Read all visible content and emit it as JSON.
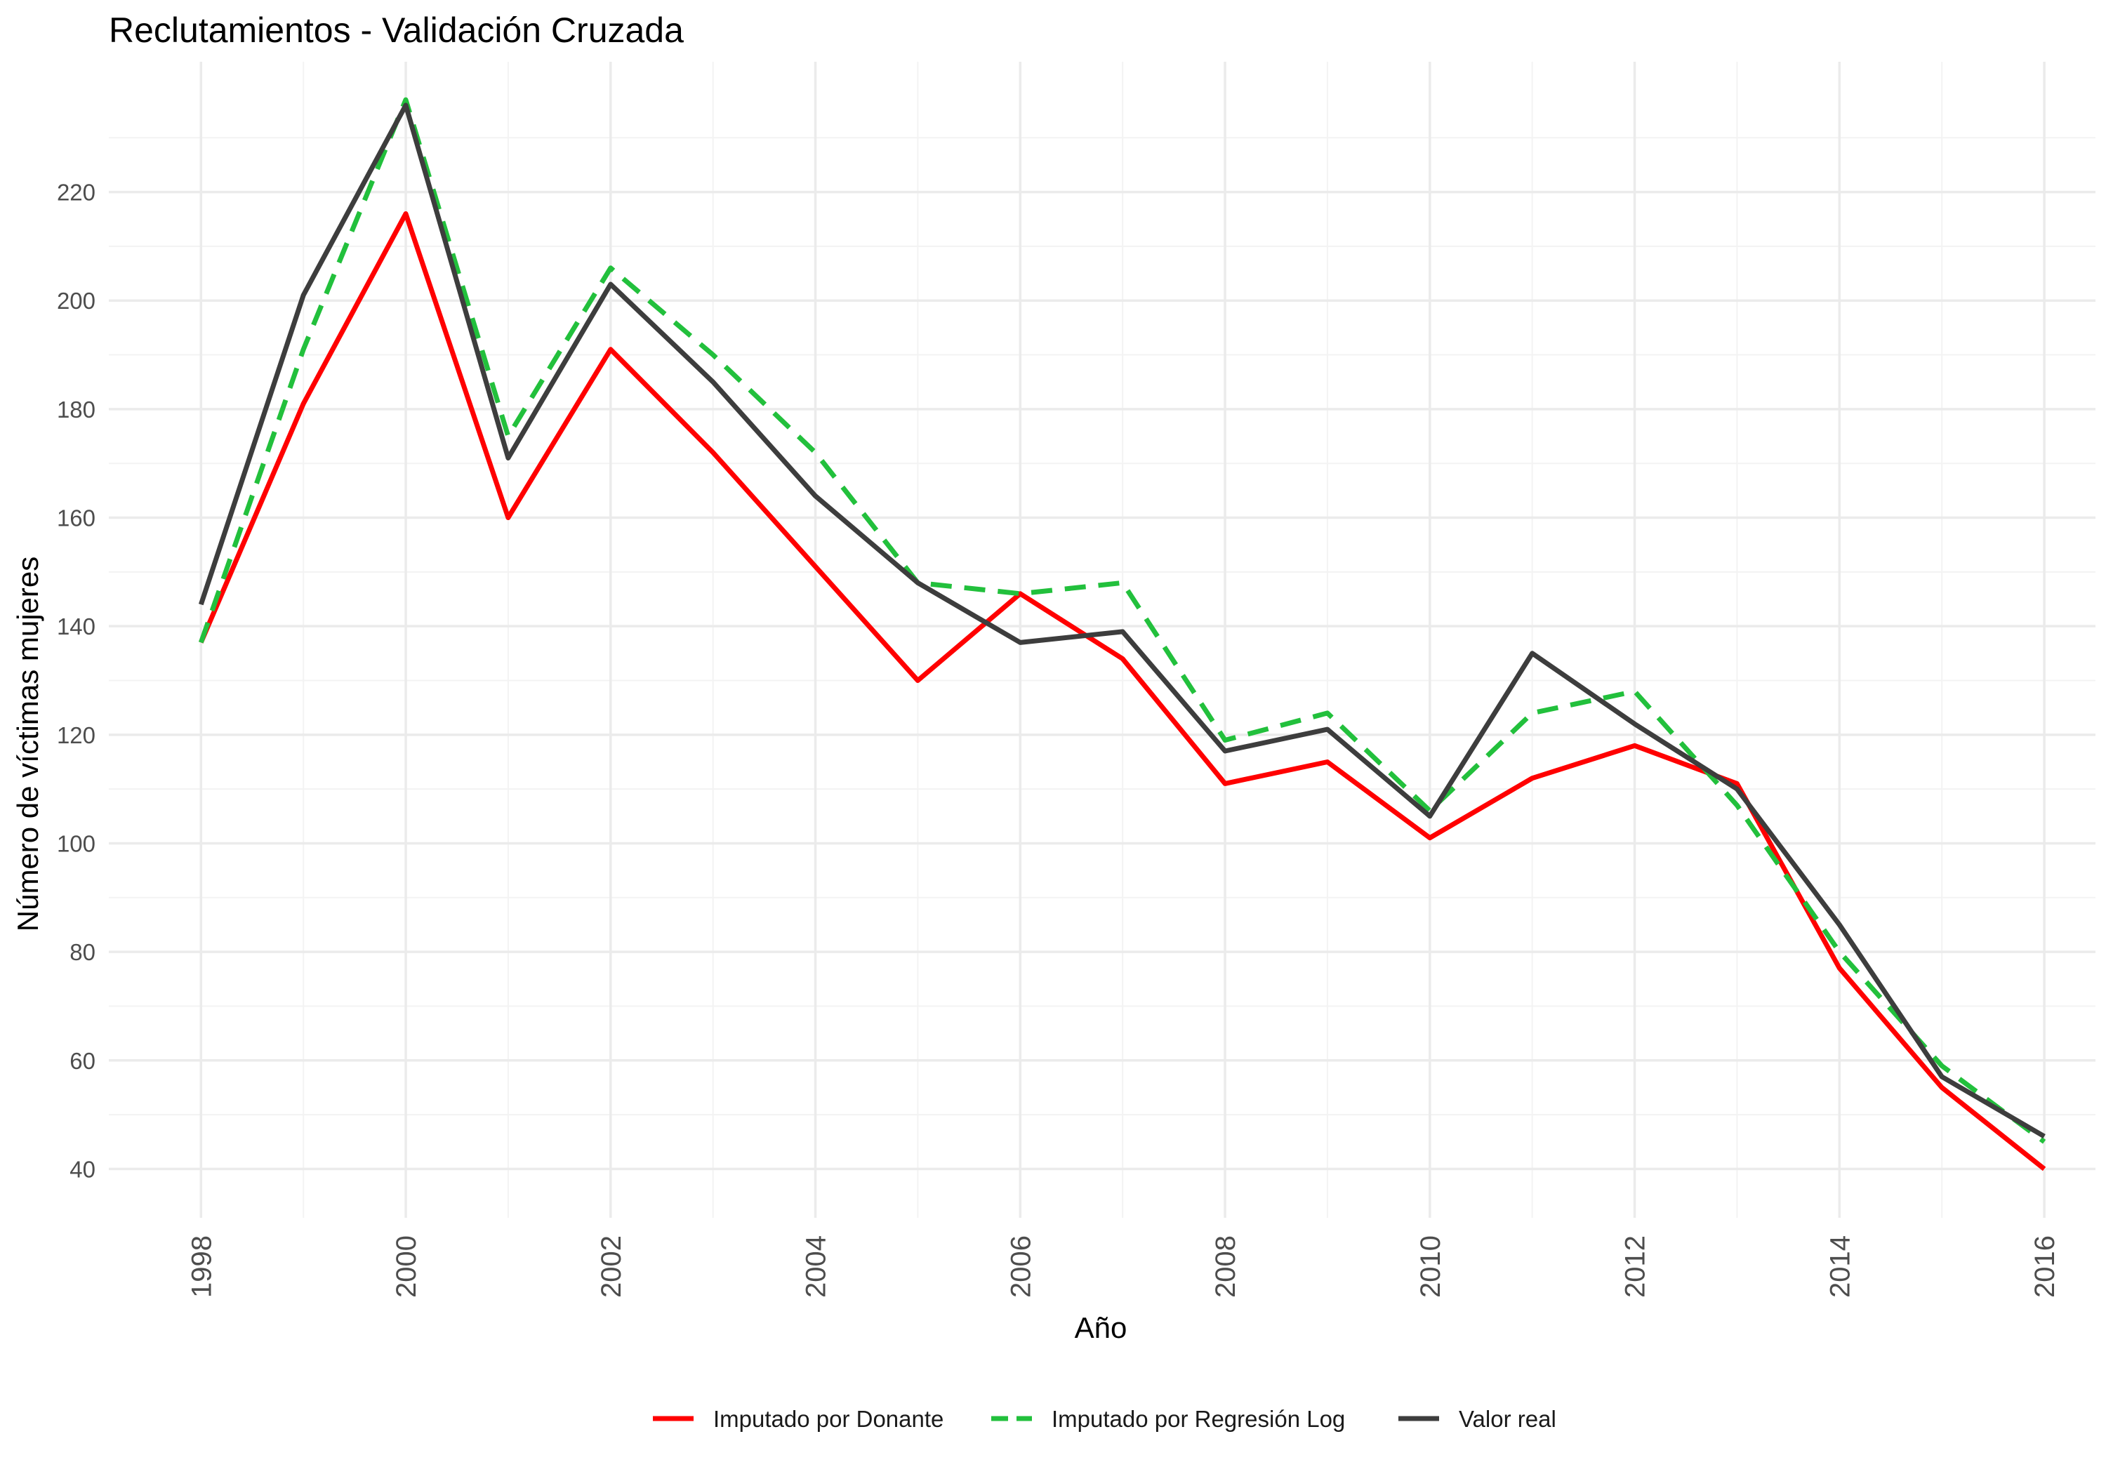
{
  "chart_data": {
    "type": "line",
    "title": "Reclutamientos - Validación Cruzada",
    "xlabel": "Año",
    "ylabel": "Número de víctimas mujeres",
    "x": [
      1998,
      1999,
      2000,
      2001,
      2002,
      2003,
      2004,
      2005,
      2006,
      2007,
      2008,
      2009,
      2010,
      2011,
      2012,
      2013,
      2014,
      2015,
      2016
    ],
    "x_ticks": [
      "1998",
      "2000",
      "2002",
      "2004",
      "2006",
      "2008",
      "2010",
      "2012",
      "2014",
      "2016"
    ],
    "y_ticks": [
      "40",
      "60",
      "80",
      "100",
      "120",
      "140",
      "160",
      "180",
      "200",
      "220"
    ],
    "xlim": [
      1997.1,
      2016.5
    ],
    "ylim": [
      31,
      244
    ],
    "grid": true,
    "legend_position": "bottom",
    "series": [
      {
        "name": "Imputado por Donante",
        "color": "#ff0000",
        "dash": "solid",
        "values": [
          137,
          181,
          216,
          160,
          191,
          172,
          151,
          130,
          146,
          134,
          111,
          115,
          101,
          112,
          118,
          111,
          77,
          55,
          40
        ]
      },
      {
        "name": "Imputado por Regresión Log",
        "color": "#22c03c",
        "dash": "dashed",
        "values": [
          137,
          191,
          237,
          175,
          206,
          190,
          172,
          148,
          146,
          148,
          119,
          124,
          106,
          124,
          128,
          107,
          80,
          59,
          45
        ]
      },
      {
        "name": "Valor real",
        "color": "#3d3d3d",
        "dash": "solid",
        "values": [
          144,
          201,
          236,
          171,
          203,
          185,
          164,
          148,
          137,
          139,
          117,
          121,
          105,
          135,
          122,
          110,
          85,
          57,
          46
        ]
      }
    ]
  }
}
